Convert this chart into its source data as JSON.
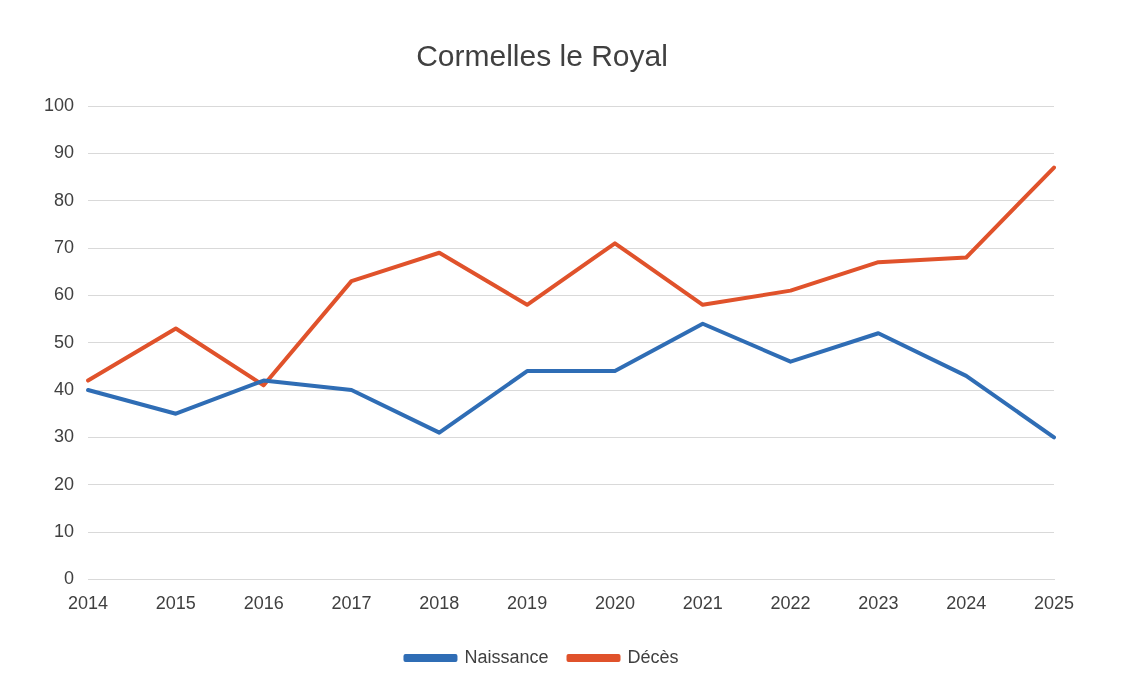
{
  "chart_data": {
    "type": "line",
    "title": "Cormelles le Royal",
    "categories": [
      "2014",
      "2015",
      "2016",
      "2017",
      "2018",
      "2019",
      "2020",
      "2021",
      "2022",
      "2023",
      "2024",
      "2025"
    ],
    "series": [
      {
        "name": "Naissance",
        "color": "#2f6db5",
        "values": [
          40,
          35,
          42,
          40,
          31,
          44,
          44,
          54,
          46,
          52,
          43,
          30
        ]
      },
      {
        "name": "Décès",
        "color": "#e0522b",
        "values": [
          42,
          53,
          41,
          63,
          69,
          58,
          71,
          58,
          61,
          67,
          68,
          87
        ]
      }
    ],
    "ylim": [
      0,
      100
    ],
    "yticks": [
      0,
      10,
      20,
      30,
      40,
      50,
      60,
      70,
      80,
      90,
      100
    ],
    "grid": "y",
    "legend": "bottom",
    "marker": "none",
    "line_style": "solid"
  }
}
